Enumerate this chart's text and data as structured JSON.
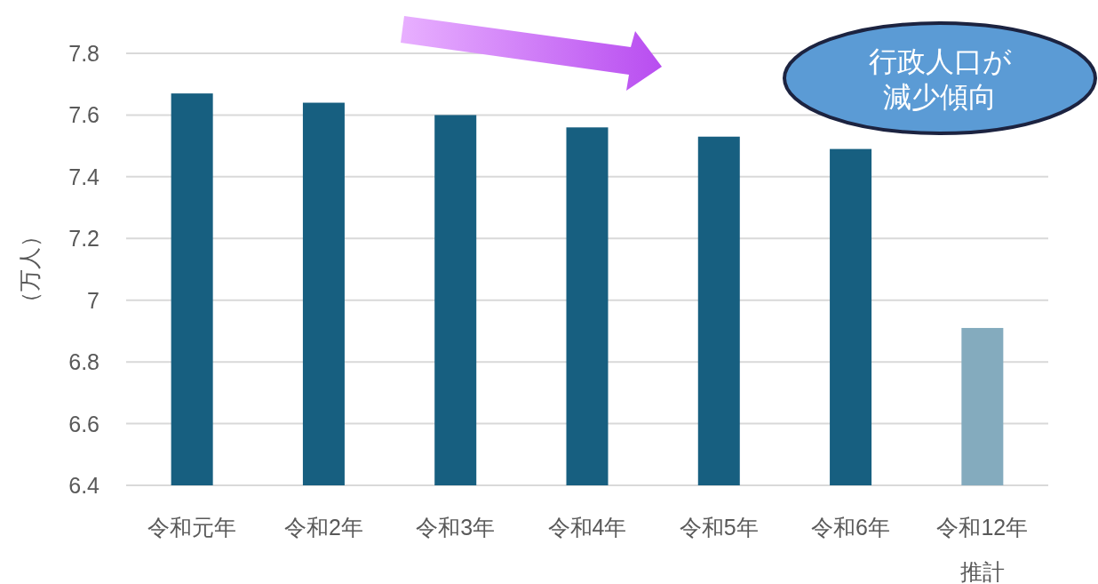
{
  "chart_data": {
    "type": "bar",
    "ylabel": "（万人）",
    "categories": [
      "令和元年",
      "令和2年",
      "令和3年",
      "令和4年",
      "令和5年",
      "令和6年",
      "令和12年推計"
    ],
    "values": [
      7.67,
      7.64,
      7.6,
      7.56,
      7.53,
      7.49,
      6.91
    ],
    "colors": [
      "#175f80",
      "#175f80",
      "#175f80",
      "#175f80",
      "#175f80",
      "#175f80",
      "#84abbe"
    ],
    "ylim": [
      6.4,
      7.8
    ],
    "yticks": [
      6.4,
      6.6,
      6.8,
      7,
      7.2,
      7.4,
      7.6,
      7.8
    ],
    "grid": "y",
    "annotations": [
      "行政人口が減少傾向"
    ]
  }
}
